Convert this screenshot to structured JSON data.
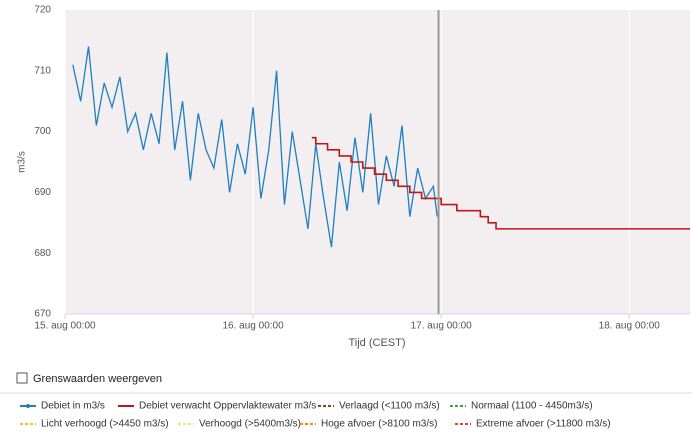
{
  "chart_data": {
    "type": "line",
    "y_label": "m3/s",
    "x_label": "Tijd (CEST)",
    "ylim": [
      670,
      720
    ],
    "yticks": [
      670,
      680,
      690,
      700,
      710,
      720
    ],
    "xlim": [
      "15. aug 00:00",
      "18. aug 07:45"
    ],
    "xticks": [
      "15. aug 00:00",
      "16. aug 00:00",
      "17. aug 00:00",
      "18. aug 00:00"
    ],
    "grid": "x",
    "plot_line_x": "16. aug 23:40",
    "plot_line_color": "#999999",
    "series": [
      {
        "name": "Debiet in m3/s",
        "color": "#1f7fc0",
        "step": false,
        "x": [
          "15. aug 01:00",
          "15. aug 02:00",
          "15. aug 03:00",
          "15. aug 04:00",
          "15. aug 05:00",
          "15. aug 06:00",
          "15. aug 07:00",
          "15. aug 08:00",
          "15. aug 09:00",
          "15. aug 10:00",
          "15. aug 11:00",
          "15. aug 12:00",
          "15. aug 13:00",
          "15. aug 14:00",
          "15. aug 15:00",
          "15. aug 16:00",
          "15. aug 17:00",
          "15. aug 18:00",
          "15. aug 19:00",
          "15. aug 20:00",
          "15. aug 21:00",
          "15. aug 22:00",
          "15. aug 23:00",
          "16. aug 00:00",
          "16. aug 01:00",
          "16. aug 02:00",
          "16. aug 03:00",
          "16. aug 04:00",
          "16. aug 05:00",
          "16. aug 06:00",
          "16. aug 07:00",
          "16. aug 08:00",
          "16. aug 09:00",
          "16. aug 10:00",
          "16. aug 11:00",
          "16. aug 12:00",
          "16. aug 13:00",
          "16. aug 14:00",
          "16. aug 15:00",
          "16. aug 16:00",
          "16. aug 17:00",
          "16. aug 18:00",
          "16. aug 19:00",
          "16. aug 20:00",
          "16. aug 21:00",
          "16. aug 22:00",
          "16. aug 23:00",
          "16. aug 23:30"
        ],
        "values": [
          711,
          705,
          714,
          701,
          708,
          704,
          709,
          700,
          703,
          697,
          703,
          698,
          713,
          697,
          705,
          692,
          703,
          697,
          694,
          702,
          690,
          698,
          693,
          704,
          689,
          697,
          710,
          688,
          700,
          692,
          684,
          698,
          689,
          681,
          695,
          687,
          699,
          690,
          703,
          688,
          696,
          691,
          701,
          686,
          694,
          689,
          691,
          686
        ]
      },
      {
        "name": "Debiet verwacht Oppervlaktewater m3/s",
        "color": "#c0161b",
        "step": true,
        "x": [
          "16. aug 07:30",
          "16. aug 08:00",
          "16. aug 09:30",
          "16. aug 11:00",
          "16. aug 12:30",
          "16. aug 14:00",
          "16. aug 15:30",
          "16. aug 17:00",
          "16. aug 18:30",
          "16. aug 20:00",
          "16. aug 21:30",
          "17. aug 00:00",
          "17. aug 02:00",
          "17. aug 05:00",
          "17. aug 06:00",
          "17. aug 07:00",
          "18. aug 07:45"
        ],
        "values": [
          699,
          698,
          697,
          696,
          695,
          694,
          693,
          692,
          691,
          690,
          689,
          688,
          687,
          686,
          685,
          684,
          684
        ]
      }
    ],
    "threshold_legend": [
      {
        "name": "Verlaagd (<1100 m3/s)",
        "color": "#8b4513"
      },
      {
        "name": "Normaal (1100 - 4450m3/s)",
        "color": "#3aa63a"
      },
      {
        "name": "Licht verhoogd (>4450 m3/s)",
        "color": "#e8c21a"
      },
      {
        "name": "Verhoogd (>5400m3/s)",
        "color": "#f3e27a"
      },
      {
        "name": "Hoge afvoer (>8100 m3/s)",
        "color": "#f08a1c"
      },
      {
        "name": "Extreme afvoer (>11800 m3/s)",
        "color": "#d9442f"
      }
    ],
    "checkbox_label": "Grenswaarden weergeven"
  }
}
